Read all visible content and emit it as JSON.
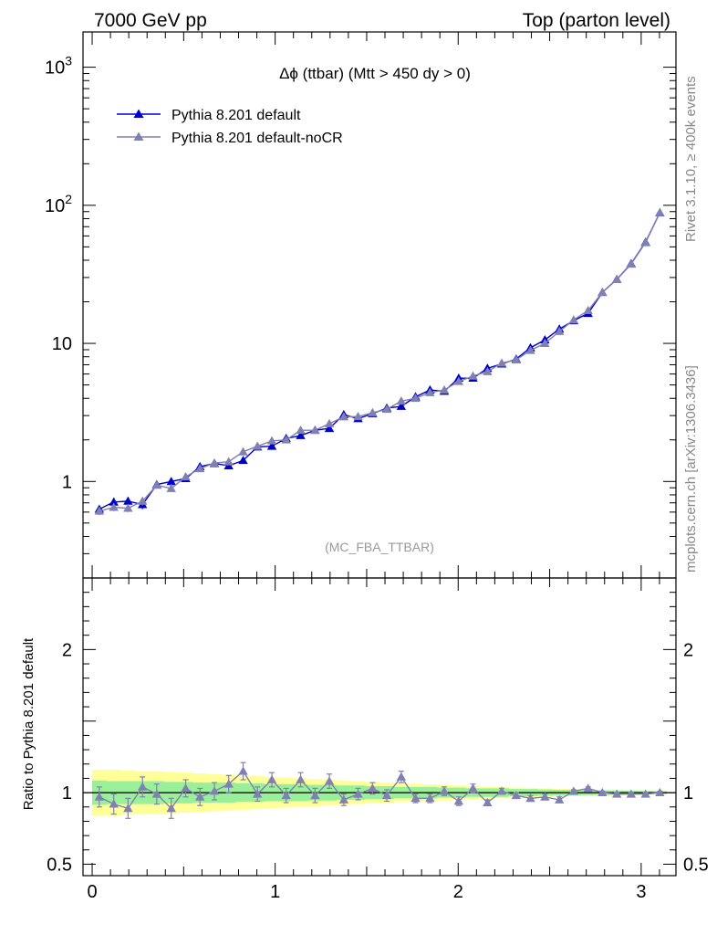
{
  "header": {
    "left": "7000 GeV pp",
    "right": "Top (parton level)"
  },
  "plot_title": "Δϕ (ttbar) (Mtt > 450 dy > 0)",
  "analysis_tag": "(MC_FBA_TTBAR)",
  "side_text": {
    "rivet": "Rivet 3.1.10, ≥ 400k events",
    "mcplots": "mcplots.cern.ch [arXiv:1306.3436]"
  },
  "ratio_ylabel": "Ratio to Pythia 8.201 default",
  "colors": {
    "series1": "#0000cc",
    "series2": "#8080b3",
    "band_inner": "#99f099",
    "band_outer": "#ffff99"
  },
  "chart_data": [
    {
      "type": "line",
      "scale_y": "log",
      "ylim": [
        0.2,
        1800
      ],
      "xlim": [
        -0.05,
        3.19
      ],
      "y_tick_labels": [
        {
          "value": 1000,
          "base": "10",
          "exp": "3"
        },
        {
          "value": 100,
          "base": "10",
          "exp": "2"
        },
        {
          "value": 10,
          "base": "10",
          "exp": ""
        },
        {
          "value": 1,
          "base": "1",
          "exp": ""
        }
      ],
      "x": [
        0.039,
        0.118,
        0.196,
        0.275,
        0.353,
        0.432,
        0.511,
        0.589,
        0.668,
        0.746,
        0.825,
        0.903,
        0.982,
        1.06,
        1.139,
        1.218,
        1.296,
        1.375,
        1.453,
        1.532,
        1.61,
        1.689,
        1.767,
        1.846,
        1.924,
        2.003,
        2.081,
        2.16,
        2.238,
        2.317,
        2.395,
        2.474,
        2.553,
        2.631,
        2.71,
        2.788,
        2.867,
        2.945,
        3.024,
        3.102
      ],
      "series": [
        {
          "name": "Pythia 8.201 default",
          "values": [
            0.63,
            0.71,
            0.72,
            0.68,
            0.95,
            1.0,
            1.05,
            1.28,
            1.35,
            1.3,
            1.42,
            1.78,
            1.8,
            2.05,
            2.15,
            2.35,
            2.42,
            3.05,
            2.85,
            3.1,
            3.4,
            3.5,
            4.1,
            4.6,
            4.5,
            5.6,
            5.6,
            6.6,
            7.1,
            7.7,
            9.3,
            10.6,
            12.7,
            14.6,
            16.5,
            23.4,
            29.1,
            37.8,
            54.1,
            88.4
          ],
          "err": [
            0.04,
            0.05,
            0.05,
            0.05,
            0.05,
            0.06,
            0.06,
            0.06,
            0.06,
            0.06,
            0.06,
            0.07,
            0.07,
            0.07,
            0.07,
            0.08,
            0.08,
            0.09,
            0.09,
            0.09,
            0.1,
            0.1,
            0.1,
            0.1,
            0.1,
            0.12,
            0.12,
            0.12,
            0.13,
            0.13,
            0.15,
            0.15,
            0.17,
            0.18,
            0.2,
            0.25,
            0.3,
            0.4,
            0.5,
            0.8
          ]
        },
        {
          "name": "Pythia 8.201 default-noCR",
          "values": [
            0.61,
            0.65,
            0.64,
            0.72,
            0.94,
            0.89,
            1.08,
            1.24,
            1.36,
            1.39,
            1.64,
            1.8,
            1.97,
            2.0,
            2.35,
            2.35,
            2.62,
            2.94,
            2.95,
            3.15,
            3.33,
            3.82,
            4.0,
            4.4,
            4.6,
            5.3,
            5.8,
            6.25,
            7.2,
            7.6,
            8.9,
            10.0,
            12.2,
            14.8,
            17.3,
            23.4,
            29.0,
            37.5,
            53.7,
            88.5
          ],
          "err": [
            0.04,
            0.04,
            0.04,
            0.05,
            0.05,
            0.05,
            0.06,
            0.06,
            0.06,
            0.06,
            0.07,
            0.07,
            0.07,
            0.07,
            0.08,
            0.08,
            0.08,
            0.09,
            0.09,
            0.09,
            0.1,
            0.1,
            0.1,
            0.1,
            0.1,
            0.12,
            0.12,
            0.12,
            0.13,
            0.13,
            0.15,
            0.15,
            0.17,
            0.18,
            0.2,
            0.25,
            0.3,
            0.4,
            0.5,
            0.8
          ]
        }
      ]
    },
    {
      "type": "line",
      "ylabel": "Ratio to Pythia 8.201 default",
      "ylim": [
        0.42,
        2.5
      ],
      "xlim": [
        -0.05,
        3.19
      ],
      "y_tick_labels": [
        {
          "value": 2,
          "label": "2"
        },
        {
          "value": 1,
          "label": "1"
        },
        {
          "value": 0.5,
          "label": "0.5"
        }
      ],
      "x_tick_labels": [
        {
          "value": 0,
          "label": "0"
        },
        {
          "value": 1,
          "label": "1"
        },
        {
          "value": 2,
          "label": "2"
        },
        {
          "value": 3,
          "label": "3"
        }
      ],
      "band_inner": [
        0.085,
        0.08,
        0.08,
        0.08,
        0.08,
        0.075,
        0.075,
        0.07,
        0.07,
        0.07,
        0.065,
        0.065,
        0.06,
        0.06,
        0.06,
        0.055,
        0.055,
        0.05,
        0.05,
        0.045,
        0.045,
        0.04,
        0.04,
        0.04,
        0.035,
        0.035,
        0.03,
        0.03,
        0.03,
        0.025,
        0.025,
        0.022,
        0.02,
        0.02,
        0.018,
        0.016,
        0.015,
        0.013,
        0.012,
        0.01
      ],
      "band_outer": [
        0.16,
        0.16,
        0.155,
        0.15,
        0.15,
        0.145,
        0.14,
        0.135,
        0.13,
        0.125,
        0.12,
        0.115,
        0.11,
        0.105,
        0.1,
        0.095,
        0.09,
        0.085,
        0.08,
        0.075,
        0.07,
        0.066,
        0.062,
        0.058,
        0.055,
        0.05,
        0.046,
        0.043,
        0.04,
        0.036,
        0.033,
        0.03,
        0.027,
        0.025,
        0.022,
        0.02,
        0.018,
        0.016,
        0.014,
        0.012
      ],
      "series": [
        {
          "name": "Pythia 8.201 default-noCR",
          "values": [
            0.97,
            0.92,
            0.89,
            1.04,
            0.99,
            0.89,
            1.03,
            0.97,
            1.01,
            1.06,
            1.15,
            0.99,
            1.09,
            0.98,
            1.09,
            0.98,
            1.08,
            0.95,
            0.99,
            1.03,
            0.98,
            1.11,
            0.96,
            0.96,
            1.01,
            0.94,
            1.03,
            0.93,
            1.01,
            0.98,
            0.96,
            0.97,
            0.95,
            1.01,
            1.03,
            1.0,
            0.99,
            0.99,
            0.99,
            1.0
          ],
          "err": [
            0.07,
            0.07,
            0.07,
            0.07,
            0.07,
            0.07,
            0.06,
            0.06,
            0.06,
            0.06,
            0.06,
            0.05,
            0.05,
            0.05,
            0.05,
            0.05,
            0.05,
            0.04,
            0.04,
            0.04,
            0.04,
            0.04,
            0.03,
            0.03,
            0.03,
            0.03,
            0.03,
            0.02,
            0.02,
            0.02,
            0.02,
            0.02,
            0.02,
            0.01,
            0.01,
            0.01,
            0.01,
            0.01,
            0.01,
            0.01
          ]
        }
      ]
    }
  ]
}
